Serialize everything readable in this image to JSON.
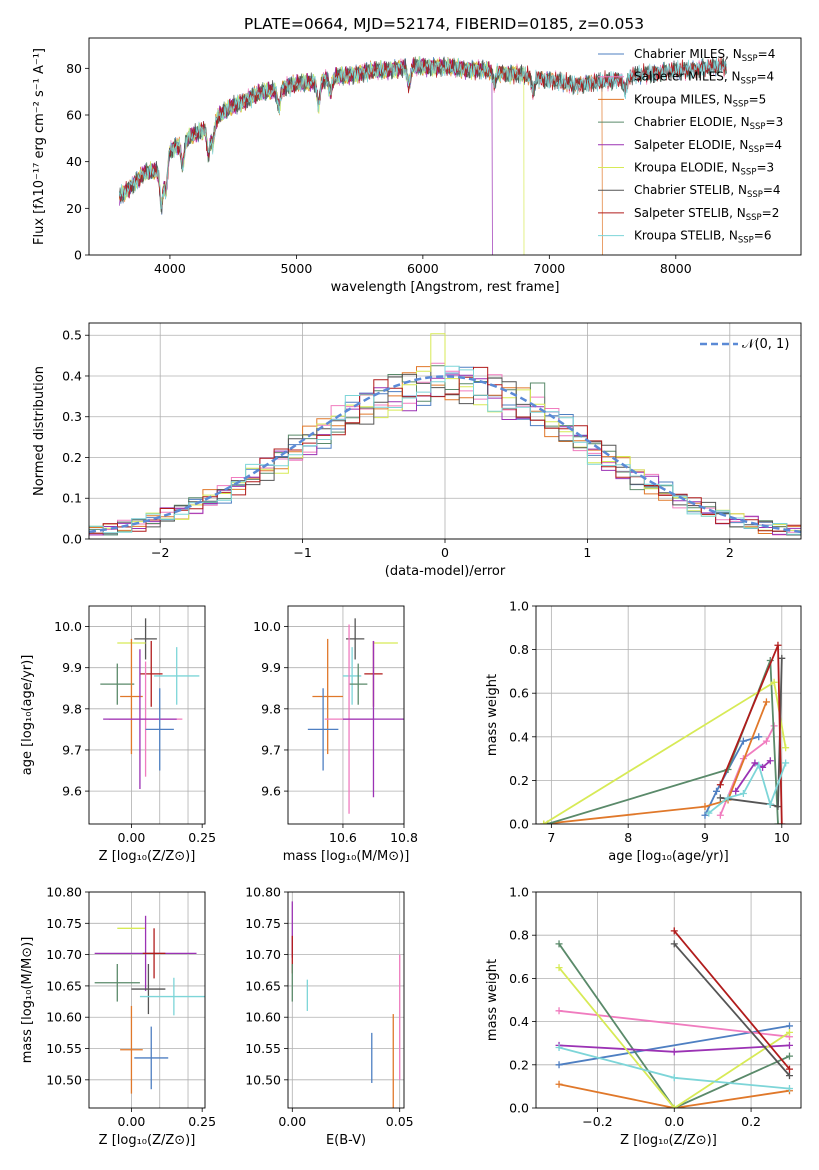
{
  "figure_title": "PLATE=0664, MJD=52174, FIBERID=0185, z=0.053",
  "chart_data": [
    {
      "id": "spectrum",
      "type": "line",
      "xlabel": "wavelength [Angstrom, rest frame]",
      "ylabel": "Flux [fλ10⁻¹⁷ erg cm⁻² s⁻¹ A⁻¹]",
      "xlim": [
        3360,
        8990
      ],
      "ylim": [
        0,
        93
      ],
      "xticks": [
        4000,
        5000,
        6000,
        7000,
        8000
      ],
      "yticks": [
        0,
        20,
        40,
        60,
        80
      ],
      "legend_position": "upper right",
      "continuum_x": [
        3600,
        3700,
        3800,
        3900,
        4000,
        4100,
        4200,
        4300,
        4400,
        4500,
        4700,
        4900,
        5100,
        5300,
        5500,
        5800,
        6000,
        6300,
        6500,
        6800,
        7000,
        7200,
        7400,
        7600,
        7800,
        8000,
        8200,
        8400
      ],
      "continuum_y": [
        25,
        30,
        35,
        36,
        45,
        48,
        52,
        55,
        60,
        64,
        69,
        72,
        74,
        76,
        78,
        80,
        81,
        80,
        79,
        77,
        75,
        73,
        74,
        76,
        78,
        79,
        80,
        81
      ],
      "absorption_x": [
        3933,
        3968,
        4101,
        4305,
        4340,
        4861,
        5175,
        5270,
        5890,
        6563,
        6870,
        7600
      ],
      "absorption_depth": [
        18,
        15,
        10,
        12,
        9,
        8,
        10,
        6,
        8,
        5,
        6,
        6
      ],
      "series": [
        {
          "name": "Chabrier MILES, N_SSP=4",
          "legend": "Chabrier MILES, N",
          "sub": "SSP",
          "count": "=4",
          "color": "#4e7fc2",
          "drop_at": null
        },
        {
          "name": "Salpeter MILES, N_SSP=4",
          "legend": "Salpeter MILES, N",
          "sub": "SSP",
          "count": "=4",
          "color": "#f07cbf",
          "drop_at": null
        },
        {
          "name": "Kroupa MILES, N_SSP=5",
          "legend": "Kroupa MILES, N",
          "sub": "SSP",
          "count": "=5",
          "color": "#e0782a",
          "drop_at": 7420
        },
        {
          "name": "Chabrier ELODIE, N_SSP=3",
          "legend": "Chabrier ELODIE, N",
          "sub": "SSP",
          "count": "=3",
          "color": "#5a8a6a",
          "drop_at": null
        },
        {
          "name": "Salpeter ELODIE, N_SSP=4",
          "legend": "Salpeter ELODIE, N",
          "sub": "SSP",
          "count": "=4",
          "color": "#9b32b4",
          "drop_at": 6550
        },
        {
          "name": "Kroupa ELODIE, N_SSP=3",
          "legend": "Kroupa ELODIE, N",
          "sub": "SSP",
          "count": "=3",
          "color": "#d7ea56",
          "drop_at": 6800
        },
        {
          "name": "Chabrier STELIB, N_SSP=4",
          "legend": "Chabrier STELIB, N",
          "sub": "SSP",
          "count": "=4",
          "color": "#555555",
          "drop_at": null
        },
        {
          "name": "Salpeter STELIB, N_SSP=2",
          "legend": "Salpeter STELIB, N",
          "sub": "SSP",
          "count": "=2",
          "color": "#b11c1c",
          "drop_at": null
        },
        {
          "name": "Kroupa STELIB, N_SSP=6",
          "legend": "Kroupa STELIB, N",
          "sub": "SSP",
          "count": "=6",
          "color": "#7dd5d8",
          "drop_at": null
        }
      ]
    },
    {
      "id": "residuals",
      "type": "line",
      "xlabel": "(data-model)/error",
      "ylabel": "Normed distribution",
      "xlim": [
        -2.5,
        2.5
      ],
      "ylim": [
        0,
        0.53
      ],
      "xticks": [
        -2,
        -1,
        0,
        1,
        2
      ],
      "xtick_labels": [
        "−2",
        "−1",
        "0",
        "1",
        "2"
      ],
      "yticks": [
        0.0,
        0.1,
        0.2,
        0.3,
        0.4,
        0.5
      ],
      "ytick_labels": [
        "0.0",
        "0.1",
        "0.2",
        "0.3",
        "0.4",
        "0.5"
      ],
      "grid": true,
      "legend_position": "upper right",
      "gaussian_label": "𝒩(0, 1)",
      "gaussian_color": "#5b8ad6",
      "bin_width": 0.1,
      "hist_colors": [
        "#4e7fc2",
        "#f07cbf",
        "#e0782a",
        "#5a8a6a",
        "#9b32b4",
        "#d7ea56",
        "#555555",
        "#b11c1c",
        "#7dd5d8"
      ],
      "hist_bumps": [
        {
          "x": 0.0,
          "dy": 0.09,
          "color_index": 3
        },
        {
          "x": 0.65,
          "dy": 0.12,
          "color_index": 3
        },
        {
          "x": -0.05,
          "dy": 0.1,
          "color_index": 5
        },
        {
          "x": 0.35,
          "dy": 0.07,
          "color_index": 1
        }
      ]
    },
    {
      "id": "age-vs-Z",
      "type": "scatter",
      "xlabel": "Z [log₁₀(Z/Z⊙)]",
      "ylabel": "age  [log₁₀(age/yr)]",
      "xlim": [
        -0.15,
        0.26
      ],
      "ylim": [
        9.52,
        10.05
      ],
      "xticks": [
        0.0,
        0.1,
        0.2
      ],
      "xtick_labels": [
        "0.00",
        "0.25"
      ],
      "xtick_label_values": [
        0.0,
        0.25
      ],
      "yticks": [
        9.6,
        9.7,
        9.8,
        9.9,
        10.0
      ],
      "ytick_labels": [
        "9.6",
        "9.7",
        "9.8",
        "9.9",
        "10.0"
      ],
      "grid": true,
      "points": [
        {
          "x": 0.05,
          "y": 9.97,
          "xerr": 0.04,
          "yerr": 0.05,
          "color": "#555555"
        },
        {
          "x": 0.0,
          "y": 9.96,
          "xerr": 0.05,
          "yerr": 0.0,
          "color": "#d7ea56"
        },
        {
          "x": 0.07,
          "y": 9.885,
          "xerr": 0.04,
          "yerr": 0.08,
          "color": "#b11c1c"
        },
        {
          "x": 0.16,
          "y": 9.88,
          "xerr": 0.08,
          "yerr": 0.07,
          "color": "#7dd5d8"
        },
        {
          "x": -0.05,
          "y": 9.86,
          "xerr": 0.06,
          "yerr": 0.05,
          "color": "#5a8a6a"
        },
        {
          "x": 0.0,
          "y": 9.83,
          "xerr": 0.04,
          "yerr": 0.14,
          "color": "#e0782a"
        },
        {
          "x": 0.05,
          "y": 9.775,
          "xerr": 0.13,
          "yerr": 0.14,
          "color": "#f07cbf"
        },
        {
          "x": 0.03,
          "y": 9.775,
          "xerr": 0.13,
          "yerr": 0.17,
          "color": "#9b32b4"
        },
        {
          "x": 0.1,
          "y": 9.75,
          "xerr": 0.05,
          "yerr": 0.1,
          "color": "#4e7fc2"
        }
      ]
    },
    {
      "id": "age-vs-mass",
      "type": "scatter",
      "xlabel": "mass [log₁₀(M/M⊙)]",
      "ylabel": "",
      "xlim": [
        10.42,
        10.8
      ],
      "ylim": [
        9.52,
        10.05
      ],
      "xticks": [
        10.6,
        10.8
      ],
      "xtick_labels": [
        "10.6",
        "10.8"
      ],
      "yticks": [
        9.6,
        9.7,
        9.8,
        9.9,
        10.0
      ],
      "ytick_labels": [
        "9.6",
        "9.7",
        "9.8",
        "9.9",
        "10.0"
      ],
      "grid": true,
      "points": [
        {
          "x": 10.64,
          "y": 9.97,
          "xerr": 0.03,
          "yerr": 0.05,
          "color": "#555555"
        },
        {
          "x": 10.74,
          "y": 9.96,
          "xerr": 0.04,
          "yerr": 0.0,
          "color": "#d7ea56"
        },
        {
          "x": 10.7,
          "y": 9.885,
          "xerr": 0.03,
          "yerr": 0.08,
          "color": "#b11c1c"
        },
        {
          "x": 10.63,
          "y": 9.88,
          "xerr": 0.03,
          "yerr": 0.07,
          "color": "#7dd5d8"
        },
        {
          "x": 10.65,
          "y": 9.86,
          "xerr": 0.03,
          "yerr": 0.05,
          "color": "#5a8a6a"
        },
        {
          "x": 10.55,
          "y": 9.83,
          "xerr": 0.05,
          "yerr": 0.14,
          "color": "#e0782a"
        },
        {
          "x": 10.62,
          "y": 9.775,
          "xerr": 0.08,
          "yerr": 0.23,
          "color": "#f07cbf"
        },
        {
          "x": 10.7,
          "y": 9.775,
          "xerr": 0.1,
          "yerr": 0.19,
          "color": "#9b32b4"
        },
        {
          "x": 10.535,
          "y": 9.75,
          "xerr": 0.05,
          "yerr": 0.1,
          "color": "#4e7fc2"
        }
      ]
    },
    {
      "id": "massweight-vs-age",
      "type": "line",
      "xlabel": "age  [log₁₀(age/yr)]",
      "ylabel": "mass weight",
      "xlim": [
        6.8,
        10.25
      ],
      "ylim": [
        0.0,
        1.0
      ],
      "xticks": [
        7,
        8,
        9,
        10
      ],
      "xtick_labels": [
        "7",
        "8",
        "9",
        "10"
      ],
      "yticks": [
        0.0,
        0.2,
        0.4,
        0.6,
        0.8,
        1.0
      ],
      "ytick_labels": [
        "0.0",
        "0.2",
        "0.4",
        "0.6",
        "0.8",
        "1.0"
      ],
      "grid": true,
      "series": [
        {
          "color": "#4e7fc2",
          "x": [
            9.0,
            9.15,
            9.5,
            9.7
          ],
          "y": [
            0.04,
            0.15,
            0.38,
            0.4
          ]
        },
        {
          "color": "#f07cbf",
          "x": [
            9.2,
            9.5,
            9.8,
            9.9
          ],
          "y": [
            0.04,
            0.3,
            0.38,
            0.45
          ]
        },
        {
          "color": "#e0782a",
          "x": [
            6.9,
            9.0,
            9.3,
            9.8
          ],
          "y": [
            0.0,
            0.08,
            0.11,
            0.56
          ]
        },
        {
          "color": "#5a8a6a",
          "x": [
            6.95,
            9.3,
            9.85,
            9.95
          ],
          "y": [
            0.0,
            0.25,
            0.75,
            0.0
          ]
        },
        {
          "color": "#9b32b4",
          "x": [
            9.4,
            9.65,
            9.75,
            9.85
          ],
          "y": [
            0.15,
            0.28,
            0.26,
            0.29
          ]
        },
        {
          "color": "#d7ea56",
          "x": [
            6.9,
            9.9,
            10.05
          ],
          "y": [
            0.0,
            0.65,
            0.35
          ]
        },
        {
          "color": "#555555",
          "x": [
            9.2,
            9.85,
            9.95,
            10.0
          ],
          "y": [
            0.12,
            0.09,
            0.08,
            0.76
          ]
        },
        {
          "color": "#b11c1c",
          "x": [
            9.2,
            9.95,
            10.0
          ],
          "y": [
            0.18,
            0.82,
            0.0
          ]
        },
        {
          "color": "#7dd5d8",
          "x": [
            9.05,
            9.3,
            9.5,
            9.7,
            9.85,
            10.05
          ],
          "y": [
            0.05,
            0.12,
            0.14,
            0.27,
            0.09,
            0.28
          ]
        }
      ]
    },
    {
      "id": "mass-vs-Z",
      "type": "scatter",
      "xlabel": "Z [log₁₀(Z/Z⊙)]",
      "ylabel": "mass [log₁₀(M/M⊙)]",
      "xlim": [
        -0.15,
        0.26
      ],
      "ylim": [
        10.455,
        10.8
      ],
      "xticks": [
        0.0,
        0.1,
        0.2
      ],
      "xtick_labels": [
        "0.00",
        "0.25"
      ],
      "xtick_label_values": [
        0.0,
        0.25
      ],
      "yticks": [
        10.5,
        10.55,
        10.6,
        10.65,
        10.7,
        10.75,
        10.8
      ],
      "ytick_labels": [
        "10.50",
        "10.55",
        "10.60",
        "10.65",
        "10.70",
        "10.75",
        "10.80"
      ],
      "grid": true,
      "points": [
        {
          "x": 0.0,
          "y": 10.742,
          "xerr": 0.05,
          "yerr": 0.0,
          "color": "#d7ea56"
        },
        {
          "x": 0.05,
          "y": 10.702,
          "xerr": 0.18,
          "yerr": 0.06,
          "color": "#9b32b4"
        },
        {
          "x": 0.08,
          "y": 10.702,
          "xerr": 0.04,
          "yerr": 0.04,
          "color": "#b11c1c"
        },
        {
          "x": -0.05,
          "y": 10.655,
          "xerr": 0.08,
          "yerr": 0.03,
          "color": "#5a8a6a"
        },
        {
          "x": 0.06,
          "y": 10.645,
          "xerr": 0.06,
          "yerr": 0.04,
          "color": "#555555"
        },
        {
          "x": 0.15,
          "y": 10.633,
          "xerr": 0.12,
          "yerr": 0.03,
          "color": "#7dd5d8"
        },
        {
          "x": 0.0,
          "y": 10.548,
          "xerr": 0.04,
          "yerr": 0.07,
          "color": "#e0782a"
        },
        {
          "x": 0.07,
          "y": 10.535,
          "xerr": 0.06,
          "yerr": 0.05,
          "color": "#4e7fc2"
        }
      ]
    },
    {
      "id": "mass-vs-ebv",
      "type": "scatter",
      "xlabel": "E(B-V)",
      "ylabel": "",
      "xlim": [
        -0.002,
        0.052
      ],
      "ylim": [
        10.455,
        10.8
      ],
      "xticks": [
        0.0,
        0.05
      ],
      "xtick_labels": [
        "0.00",
        "0.05"
      ],
      "yticks": [
        10.5,
        10.55,
        10.6,
        10.65,
        10.7,
        10.75,
        10.8
      ],
      "ytick_labels": [
        "10.50",
        "10.55",
        "10.60",
        "10.65",
        "10.70",
        "10.75",
        "10.80"
      ],
      "grid": true,
      "points": [
        {
          "x": 0.0,
          "y": 10.74,
          "xerr": 0.0,
          "yerr": 0.045,
          "color": "#9b32b4"
        },
        {
          "x": 0.0,
          "y": 10.7,
          "xerr": 0.0,
          "yerr": 0.03,
          "color": "#b11c1c"
        },
        {
          "x": 0.0,
          "y": 10.655,
          "xerr": 0.0,
          "yerr": 0.03,
          "color": "#5a8a6a"
        },
        {
          "x": 0.007,
          "y": 10.635,
          "xerr": 0.0,
          "yerr": 0.025,
          "color": "#7dd5d8"
        },
        {
          "x": 0.037,
          "y": 10.535,
          "xerr": 0.0,
          "yerr": 0.04,
          "color": "#4e7fc2"
        },
        {
          "x": 0.047,
          "y": 10.53,
          "xerr": 0.0,
          "yerr": 0.075,
          "color": "#e0782a"
        },
        {
          "x": 0.05,
          "y": 10.6,
          "xerr": 0.0,
          "yerr": 0.1,
          "color": "#f07cbf"
        }
      ]
    },
    {
      "id": "massweight-vs-Z",
      "type": "line",
      "xlabel": "Z [log₁₀(Z/Z⊙)]",
      "ylabel": "mass weight",
      "xlim": [
        -0.36,
        0.33
      ],
      "ylim": [
        0.0,
        1.0
      ],
      "xticks": [
        -0.2,
        0.0,
        0.2
      ],
      "xtick_labels": [
        "−0.2",
        "0.0",
        "0.2"
      ],
      "yticks": [
        0.0,
        0.2,
        0.4,
        0.6,
        0.8,
        1.0
      ],
      "ytick_labels": [
        "0.0",
        "0.2",
        "0.4",
        "0.6",
        "0.8",
        "1.0"
      ],
      "grid": true,
      "series": [
        {
          "color": "#4e7fc2",
          "x": [
            -0.3,
            0.3
          ],
          "y": [
            0.2,
            0.38
          ]
        },
        {
          "color": "#f07cbf",
          "x": [
            -0.3,
            0.3
          ],
          "y": [
            0.45,
            0.33
          ]
        },
        {
          "color": "#e0782a",
          "x": [
            -0.3,
            0.0,
            0.3
          ],
          "y": [
            0.11,
            0.0,
            0.08
          ]
        },
        {
          "color": "#5a8a6a",
          "x": [
            -0.3,
            0.0,
            0.3
          ],
          "y": [
            0.76,
            0.0,
            0.24
          ]
        },
        {
          "color": "#9b32b4",
          "x": [
            -0.3,
            0.0,
            0.3
          ],
          "y": [
            0.29,
            0.26,
            0.29
          ]
        },
        {
          "color": "#d7ea56",
          "x": [
            -0.3,
            0.0,
            0.3
          ],
          "y": [
            0.65,
            0.0,
            0.35
          ]
        },
        {
          "color": "#555555",
          "x": [
            0.0,
            0.3
          ],
          "y": [
            0.76,
            0.15
          ]
        },
        {
          "color": "#b11c1c",
          "x": [
            0.0,
            0.3
          ],
          "y": [
            0.82,
            0.18
          ]
        },
        {
          "color": "#7dd5d8",
          "x": [
            -0.3,
            0.0,
            0.3
          ],
          "y": [
            0.28,
            0.14,
            0.09
          ]
        }
      ]
    }
  ]
}
